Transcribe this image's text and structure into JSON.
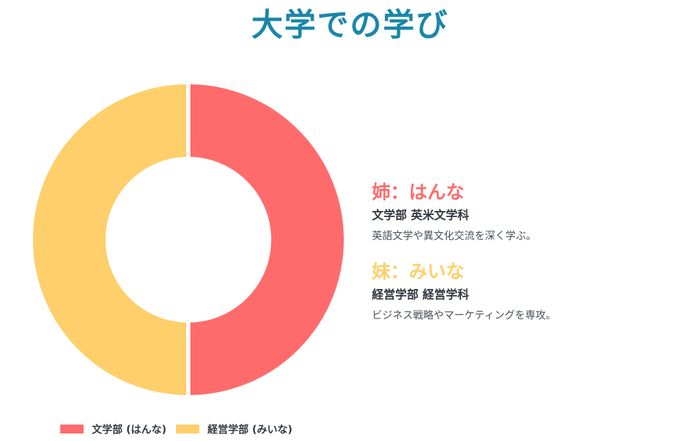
{
  "title": "大学での学び",
  "colors": {
    "title": "#1a87a8",
    "hanna": "#ff6b6b",
    "miina": "#fecf6a"
  },
  "chart_data": {
    "type": "pie",
    "donut": true,
    "labels": [
      "文学部 (はんな)",
      "経営学部 (みいな)"
    ],
    "values": [
      50,
      50
    ],
    "colors": [
      "#ff6b6b",
      "#fecf6a"
    ],
    "legend_position": "bottom"
  },
  "profiles": [
    {
      "name": "姉：はんな",
      "dept": "文学部 英米文学科",
      "desc": "英語文学や異文化交流を深く学ぶ。",
      "color": "#ff6b6b"
    },
    {
      "name": "妹：みいな",
      "dept": "経営学部 経営学科",
      "desc": "ビジネス戦略やマーケティングを専攻。",
      "color": "#fecf6a"
    }
  ]
}
